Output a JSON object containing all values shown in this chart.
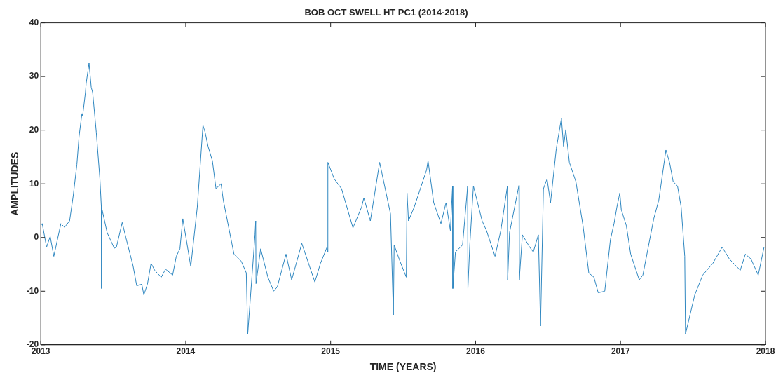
{
  "chart_data": {
    "type": "line",
    "title": "BOB OCT SWELL HT PC1 (2014-2018)",
    "xlabel": "TIME (YEARS)",
    "ylabel": "AMPLITUDES",
    "xlim": [
      2013,
      2018
    ],
    "xticks": [
      2013,
      2014,
      2015,
      2016,
      2017,
      2018
    ],
    "ylim": [
      -20,
      40
    ],
    "yticks": [
      -20,
      -10,
      0,
      10,
      20,
      30,
      40
    ],
    "marker": "none",
    "x": [
      2013.0,
      2013.01,
      2013.04,
      2013.065,
      2013.09,
      2013.139,
      2013.164,
      2013.199,
      2013.224,
      2013.249,
      2013.264,
      2013.284,
      2013.289,
      2013.308,
      2013.313,
      2013.333,
      2013.348,
      2013.358,
      2013.383,
      2013.408,
      2013.418,
      2013.42,
      2013.423,
      2013.458,
      2013.507,
      2013.522,
      2013.562,
      2013.587,
      2013.637,
      2013.662,
      2013.697,
      2013.711,
      2013.736,
      2013.761,
      2013.786,
      2013.831,
      2013.861,
      2013.91,
      2013.935,
      2013.96,
      2013.98,
      2014.035,
      2014.08,
      2014.119,
      2014.134,
      2014.154,
      2014.184,
      2014.209,
      2014.244,
      2014.259,
      2014.333,
      2014.383,
      2014.418,
      2014.428,
      2014.478,
      2014.483,
      2014.485,
      2014.517,
      2014.567,
      2014.607,
      2014.632,
      2014.692,
      2014.731,
      2014.801,
      2014.891,
      2014.93,
      2014.975,
      2014.98,
      2014.981,
      2015.025,
      2015.075,
      2015.154,
      2015.214,
      2015.229,
      2015.274,
      2015.338,
      2015.413,
      2015.433,
      2015.438,
      2015.478,
      2015.522,
      2015.527,
      2015.537,
      2015.577,
      2015.662,
      2015.672,
      2015.711,
      2015.761,
      2015.796,
      2015.826,
      2015.841,
      2015.843,
      2015.861,
      2015.91,
      2015.945,
      2015.947,
      2015.96,
      2015.985,
      2016.045,
      2016.075,
      2016.134,
      2016.174,
      2016.219,
      2016.221,
      2016.234,
      2016.299,
      2016.301,
      2016.323,
      2016.373,
      2016.398,
      2016.433,
      2016.448,
      2016.468,
      2016.493,
      2016.517,
      2016.557,
      2016.592,
      2016.607,
      2016.622,
      2016.647,
      2016.692,
      2016.741,
      2016.781,
      2016.816,
      2016.846,
      2016.891,
      2016.93,
      2016.955,
      2016.975,
      2016.995,
      2017.005,
      2017.04,
      2017.07,
      2017.129,
      2017.154,
      2017.229,
      2017.264,
      2017.313,
      2017.338,
      2017.363,
      2017.393,
      2017.418,
      2017.443,
      2017.448,
      2017.512,
      2017.567,
      2017.637,
      2017.701,
      2017.751,
      2017.826,
      2017.861,
      2017.9,
      2017.95,
      2017.99
    ],
    "series": [
      {
        "color": "#2f87c0",
        "values": [
          2.2,
          2.6,
          -1.8,
          0.2,
          -3.5,
          2.6,
          1.9,
          3.1,
          7.8,
          13.6,
          18.8,
          23.1,
          22.7,
          27.0,
          28.7,
          32.5,
          28.0,
          27.0,
          19.6,
          10.9,
          5.7,
          -9.5,
          5.2,
          0.9,
          -2.0,
          -1.8,
          2.8,
          0.0,
          -5.3,
          -9.0,
          -8.7,
          -10.7,
          -8.7,
          -4.8,
          -6.1,
          -7.4,
          -5.9,
          -7.0,
          -3.5,
          -2.1,
          3.5,
          -5.4,
          5.7,
          20.9,
          19.6,
          17.0,
          14.3,
          9.1,
          10.0,
          7.0,
          -3.1,
          -4.4,
          -6.6,
          -18.0,
          0.5,
          3.1,
          -8.6,
          -2.1,
          -7.4,
          -10.0,
          -9.2,
          -3.1,
          -7.9,
          -1.1,
          -8.3,
          -4.8,
          -1.8,
          -2.7,
          14.0,
          10.9,
          9.1,
          1.8,
          5.7,
          7.4,
          3.1,
          14.0,
          4.4,
          -14.5,
          -1.4,
          -4.4,
          -7.4,
          8.3,
          3.1,
          5.7,
          12.6,
          14.3,
          6.5,
          2.6,
          6.5,
          1.3,
          9.5,
          -9.5,
          -2.7,
          -1.4,
          9.5,
          -9.5,
          -1.4,
          9.6,
          3.1,
          1.3,
          -3.5,
          1.3,
          9.5,
          -8.0,
          0.9,
          9.7,
          -8.0,
          0.5,
          -1.8,
          -2.7,
          0.5,
          -16.5,
          9.1,
          10.9,
          6.5,
          16.6,
          22.2,
          17.0,
          20.1,
          14.0,
          10.4,
          2.2,
          -6.6,
          -7.4,
          -10.3,
          -10.0,
          -0.4,
          2.6,
          5.7,
          8.3,
          5.2,
          2.2,
          -3.1,
          -7.9,
          -7.0,
          3.5,
          7.0,
          16.3,
          14.0,
          10.4,
          9.6,
          5.7,
          -3.5,
          -18.0,
          -10.7,
          -7.0,
          -4.8,
          -1.8,
          -4.0,
          -6.1,
          -3.1,
          -4.0,
          -7.0,
          -1.8
        ]
      }
    ]
  }
}
